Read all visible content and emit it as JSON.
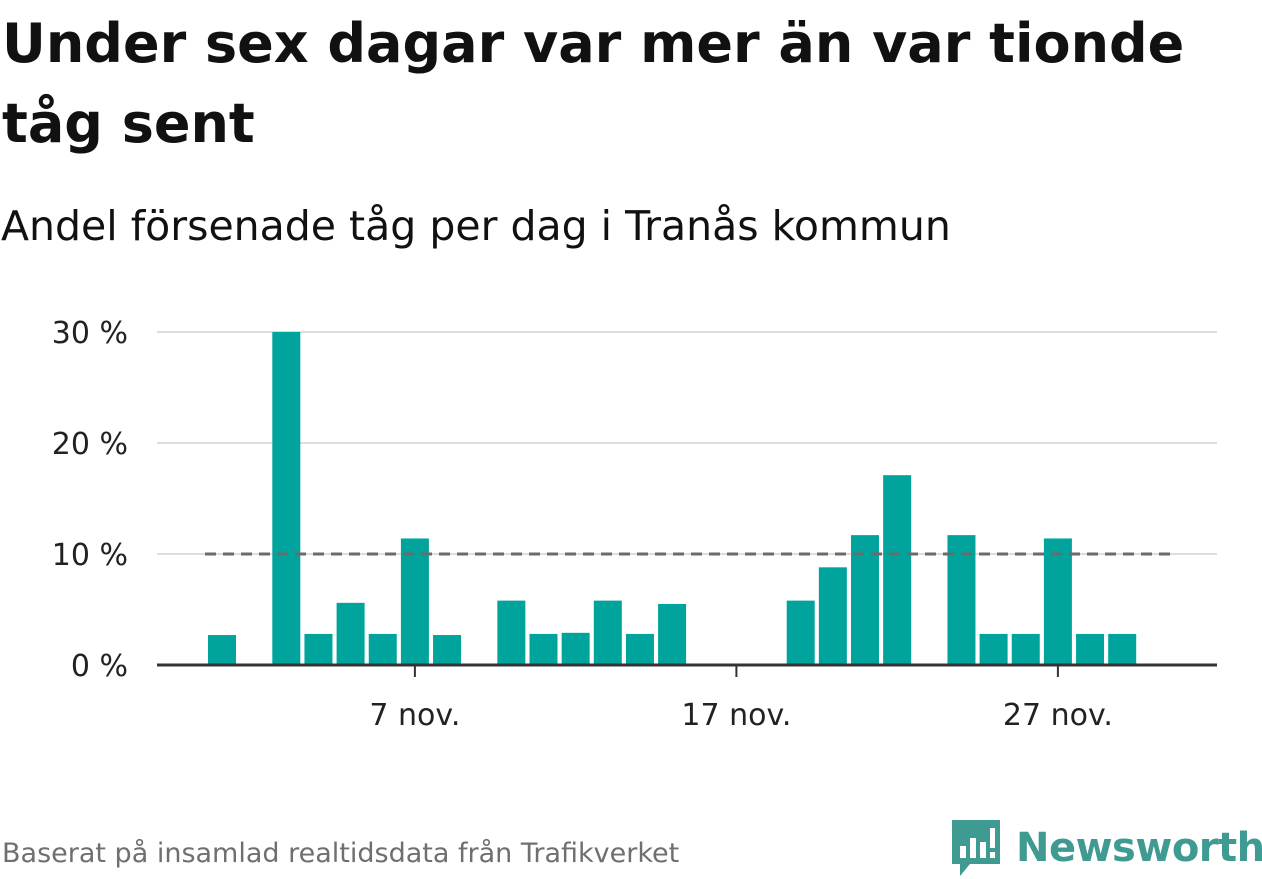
{
  "title": "Under sex dagar var mer än var tionde tåg sent",
  "subtitle": "Andel försenade tåg per dag i Tranås kommun",
  "footer": "Baserat på insamlad realtidsdata från Trafikverket",
  "brand": "Newsworthy",
  "colors": {
    "bar": "#00a49c",
    "reference_line": "#6b6b6b",
    "grid": "#dddddd",
    "axis": "#333333",
    "brand": "#3f9a91"
  },
  "chart_data": {
    "type": "bar",
    "x_unit": "date",
    "x": [
      "2023-11-01",
      "2023-11-02",
      "2023-11-03",
      "2023-11-04",
      "2023-11-05",
      "2023-11-06",
      "2023-11-07",
      "2023-11-08",
      "2023-11-09",
      "2023-11-10",
      "2023-11-11",
      "2023-11-12",
      "2023-11-13",
      "2023-11-14",
      "2023-11-15",
      "2023-11-16",
      "2023-11-17",
      "2023-11-18",
      "2023-11-19",
      "2023-11-20",
      "2023-11-21",
      "2023-11-22",
      "2023-11-23",
      "2023-11-24",
      "2023-11-25",
      "2023-11-26",
      "2023-11-27",
      "2023-11-28",
      "2023-11-29",
      "2023-11-30"
    ],
    "values": [
      2.7,
      null,
      30.0,
      2.8,
      5.6,
      2.8,
      11.4,
      2.7,
      null,
      5.8,
      2.8,
      2.9,
      5.8,
      2.8,
      5.5,
      null,
      null,
      null,
      5.8,
      8.8,
      11.7,
      17.1,
      null,
      11.7,
      2.8,
      2.8,
      11.4,
      2.8,
      2.8,
      null
    ],
    "reference_line": {
      "value": 10,
      "style": "dashed"
    },
    "x_ticks": [
      {
        "x": "2023-11-07",
        "label": "7 nov."
      },
      {
        "x": "2023-11-17",
        "label": "17 nov."
      },
      {
        "x": "2023-11-27",
        "label": "27 nov."
      }
    ],
    "y_ticks": [
      {
        "value": 0,
        "label": "0 %"
      },
      {
        "value": 10,
        "label": "10 %"
      },
      {
        "value": 20,
        "label": "20 %"
      },
      {
        "value": 30,
        "label": "30 %"
      }
    ],
    "ylim": [
      0,
      30
    ],
    "grid": true,
    "unit": "%"
  }
}
